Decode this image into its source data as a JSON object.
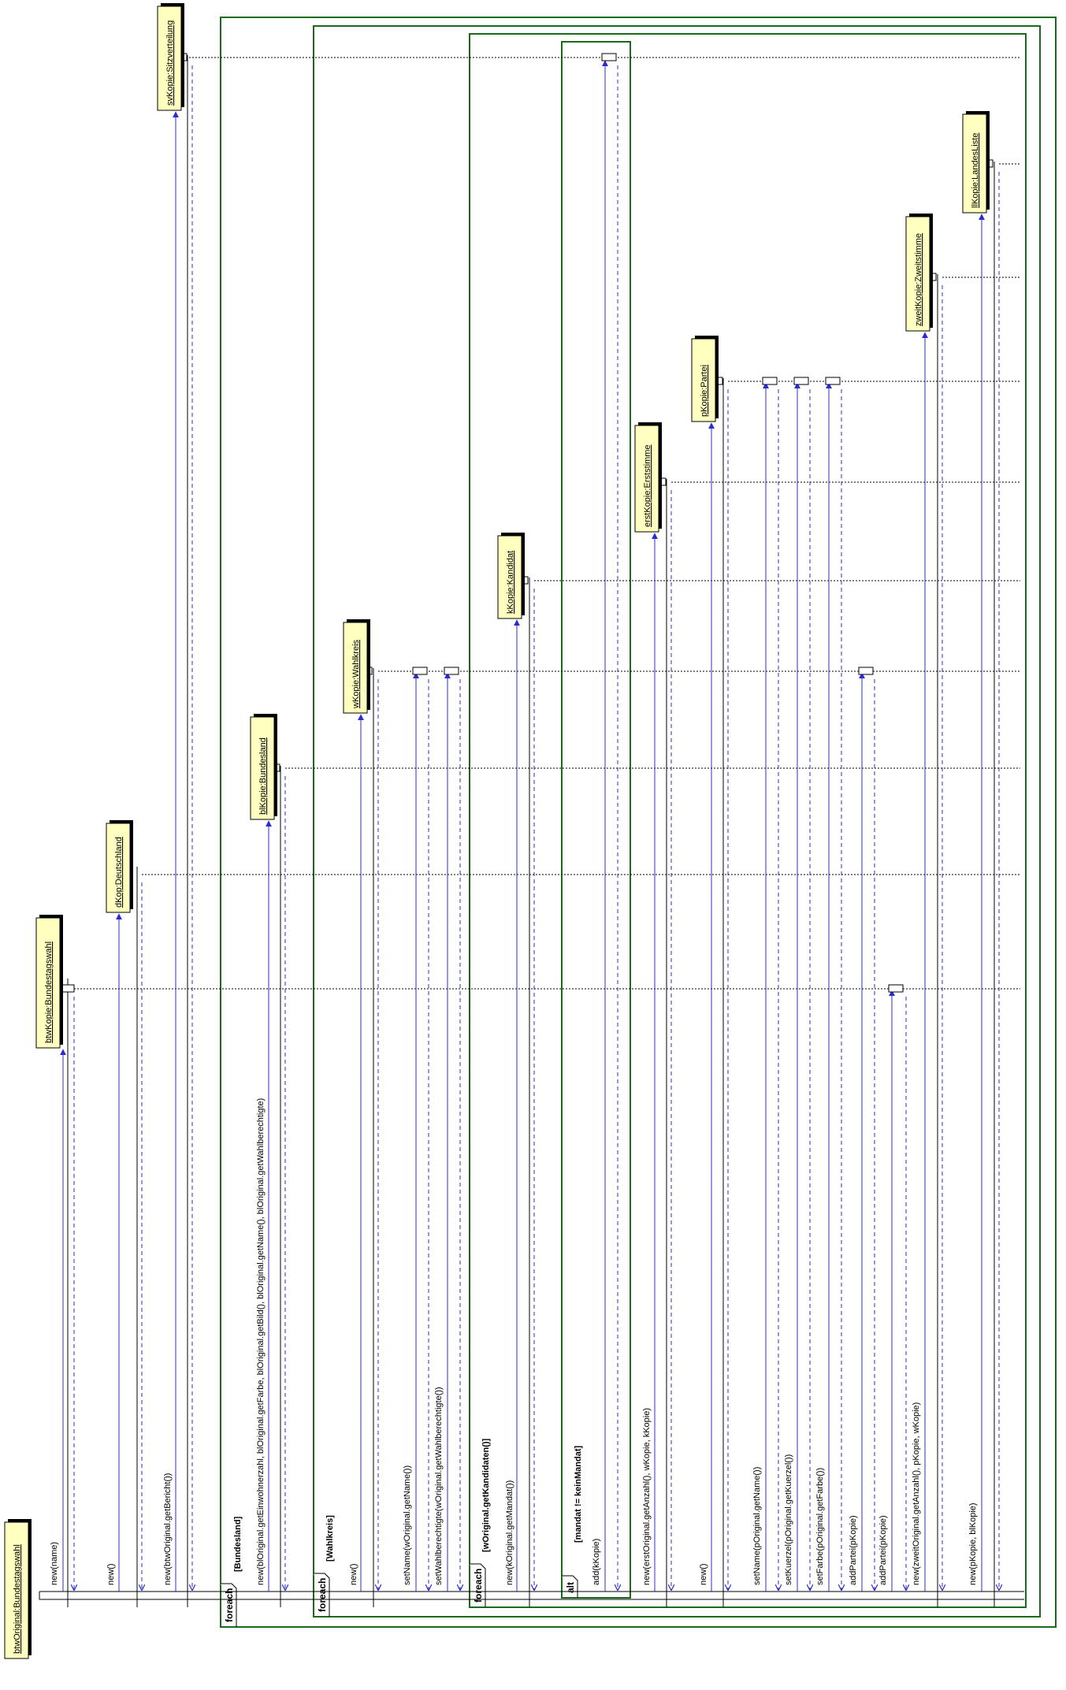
{
  "objects": [
    {
      "id": "btwOriginal",
      "label": "btwOriginal:Bundestagswahl"
    },
    {
      "id": "btwKopie",
      "label": "btwKopie:Bundestagswahl"
    },
    {
      "id": "dKop",
      "label": "dKop:Deutschland"
    },
    {
      "id": "svKopie",
      "label": "svKopie:Sitzverteilung"
    },
    {
      "id": "blKopie",
      "label": "blKopie:Bundesland"
    },
    {
      "id": "wKopie",
      "label": "wKopie:Wahlkreis"
    },
    {
      "id": "kKopie",
      "label": "kKopie:Kandidat"
    },
    {
      "id": "erstKopie",
      "label": "erstKopie:Erststimme"
    },
    {
      "id": "pKopie",
      "label": "pKopie:Partei"
    },
    {
      "id": "zweitKopie",
      "label": "zweitKopie:Zweitstimme"
    },
    {
      "id": "llKopie",
      "label": "llKopie:LandesListe"
    }
  ],
  "frames": [
    {
      "id": "f1",
      "operator": "foreach",
      "guard": "[Bundesland]"
    },
    {
      "id": "f2",
      "operator": "foreach",
      "guard": "[Wahlkreis]"
    },
    {
      "id": "f3",
      "operator": "foreach",
      "guard": "[wOriginal.getKandidaten()]"
    },
    {
      "id": "f4",
      "operator": "alt",
      "guard": "[mandat != keinMandat]"
    }
  ],
  "messages": [
    {
      "label": "new(name)"
    },
    {
      "label": "new()"
    },
    {
      "label": "new(btwOriginal.getBericht())"
    },
    {
      "label": "new(blOriginal.getEinwohnerzahl, blOriginal.getFarbe, blOriginal.getBild(), blOriginal.getName(), blOriginal.getWahlberechtigte)"
    },
    {
      "label": "new()"
    },
    {
      "label": "setName(wOriginal.getName())"
    },
    {
      "label": "setWahlberechtigte(wOriginal.getWahlberechtigte())"
    },
    {
      "label": "new(kOriginal.getMandat())"
    },
    {
      "label": "add(kKopie)"
    },
    {
      "label": "new(erstOriginal.getAnzahl(), wKopie, kKopie)"
    },
    {
      "label": "new()"
    },
    {
      "label": "setName(pOriginal.getName())"
    },
    {
      "label": "setKuerzel(pOriginal.getKuerzel())"
    },
    {
      "label": "setFarbe(pOriginal.getFarbe())"
    },
    {
      "label": "addPartei(pKopie)"
    },
    {
      "label": "addPartei(pKopie)"
    },
    {
      "label": "new(zweitOriginal.getAnzahl(), pKopie, wKopie)"
    },
    {
      "label": "new(pKopie, blKopie)"
    }
  ],
  "colors": {
    "object_fill": "#ffffc0",
    "frame": "#1a6b1a",
    "call_arrow": "#2b2bd6",
    "return_arrow": "#2b2bd6",
    "lifeline": "#000000"
  }
}
